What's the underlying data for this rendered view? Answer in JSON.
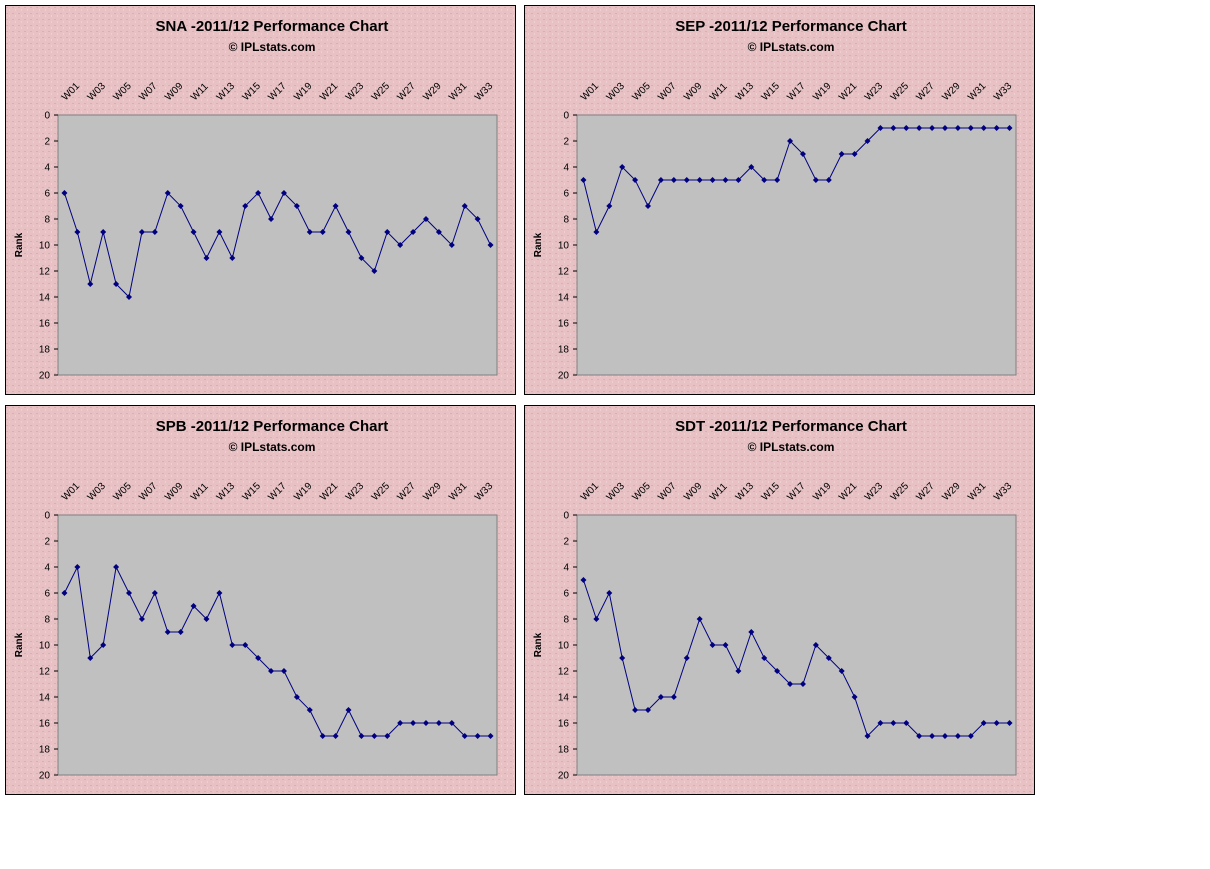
{
  "chart_data": [
    {
      "type": "line",
      "title": "SNA -2011/12 Performance Chart",
      "subtitle": "© IPLstats.com",
      "y_label": "Rank",
      "categories": [
        "W01",
        null,
        "W03",
        null,
        "W05",
        null,
        "W07",
        null,
        "W09",
        null,
        "W11",
        null,
        "W13",
        null,
        "W15",
        null,
        "W17",
        null,
        "W19",
        null,
        "W21",
        null,
        "W23",
        null,
        "W25",
        null,
        "W27",
        null,
        "W29",
        null,
        "W31",
        null,
        "W33",
        null
      ],
      "values": [
        6,
        9,
        13,
        9,
        13,
        14,
        9,
        9,
        6,
        7,
        9,
        11,
        9,
        11,
        7,
        6,
        8,
        6,
        7,
        9,
        9,
        7,
        9,
        11,
        12,
        9,
        10,
        9,
        8,
        9,
        10,
        7,
        8,
        10
      ],
      "color": "#000080",
      "ylim": [
        0,
        20
      ],
      "y_inverted": true,
      "yticks": [
        0,
        2,
        4,
        6,
        8,
        10,
        12,
        14,
        16,
        18,
        20
      ]
    },
    {
      "type": "line",
      "title": "SEP -2011/12 Performance Chart",
      "subtitle": "© IPLstats.com",
      "y_label": "Rank",
      "categories": [
        "W01",
        null,
        "W03",
        null,
        "W05",
        null,
        "W07",
        null,
        "W09",
        null,
        "W11",
        null,
        "W13",
        null,
        "W15",
        null,
        "W17",
        null,
        "W19",
        null,
        "W21",
        null,
        "W23",
        null,
        "W25",
        null,
        "W27",
        null,
        "W29",
        null,
        "W31",
        null,
        "W33",
        null
      ],
      "values": [
        5,
        9,
        7,
        4,
        5,
        7,
        5,
        5,
        5,
        5,
        5,
        5,
        5,
        4,
        5,
        5,
        2,
        3,
        5,
        5,
        3,
        3,
        2,
        1,
        1,
        1,
        1,
        1,
        1,
        1,
        1,
        1,
        1,
        1
      ],
      "color": "#000080",
      "ylim": [
        0,
        20
      ],
      "y_inverted": true,
      "yticks": [
        0,
        2,
        4,
        6,
        8,
        10,
        12,
        14,
        16,
        18,
        20
      ]
    },
    {
      "type": "line",
      "title": "SPB -2011/12 Performance Chart",
      "subtitle": "© IPLstats.com",
      "y_label": "Rank",
      "categories": [
        "W01",
        null,
        "W03",
        null,
        "W05",
        null,
        "W07",
        null,
        "W09",
        null,
        "W11",
        null,
        "W13",
        null,
        "W15",
        null,
        "W17",
        null,
        "W19",
        null,
        "W21",
        null,
        "W23",
        null,
        "W25",
        null,
        "W27",
        null,
        "W29",
        null,
        "W31",
        null,
        "W33",
        null
      ],
      "values": [
        6,
        4,
        11,
        10,
        4,
        6,
        8,
        6,
        9,
        9,
        7,
        8,
        6,
        10,
        10,
        11,
        12,
        12,
        14,
        15,
        17,
        17,
        15,
        17,
        17,
        17,
        16,
        16,
        16,
        16,
        16,
        17,
        17,
        17
      ],
      "color": "#000080",
      "ylim": [
        0,
        20
      ],
      "y_inverted": true,
      "yticks": [
        0,
        2,
        4,
        6,
        8,
        10,
        12,
        14,
        16,
        18,
        20
      ]
    },
    {
      "type": "line",
      "title": "SDT -2011/12 Performance Chart",
      "subtitle": "© IPLstats.com",
      "y_label": "Rank",
      "categories": [
        "W01",
        null,
        "W03",
        null,
        "W05",
        null,
        "W07",
        null,
        "W09",
        null,
        "W11",
        null,
        "W13",
        null,
        "W15",
        null,
        "W17",
        null,
        "W19",
        null,
        "W21",
        null,
        "W23",
        null,
        "W25",
        null,
        "W27",
        null,
        "W29",
        null,
        "W31",
        null,
        "W33",
        null
      ],
      "values": [
        5,
        8,
        6,
        11,
        15,
        15,
        14,
        14,
        11,
        8,
        10,
        10,
        12,
        9,
        11,
        12,
        13,
        13,
        10,
        11,
        12,
        14,
        17,
        16,
        16,
        16,
        17,
        17,
        17,
        17,
        17,
        16,
        16,
        16
      ],
      "color": "#000080",
      "ylim": [
        0,
        20
      ],
      "y_inverted": true,
      "yticks": [
        0,
        2,
        4,
        6,
        8,
        10,
        12,
        14,
        16,
        18,
        20
      ]
    }
  ]
}
